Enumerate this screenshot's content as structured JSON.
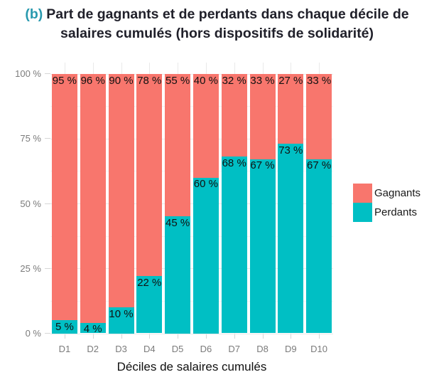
{
  "header": {
    "tag": "(b)",
    "line1": "Part de gagnants et de perdants dans chaque décile de",
    "line2": "salaires cumulés (hors dispositifs de solidarité)"
  },
  "chart_data": {
    "type": "bar",
    "stacked": true,
    "orientation": "vertical",
    "title": "(b) Part de gagnants et de perdants dans chaque décile de salaires cumulés (hors dispositifs de solidarité)",
    "xlabel": "Déciles de salaires cumulés",
    "ylabel": "",
    "categories": [
      "D1",
      "D2",
      "D3",
      "D4",
      "D5",
      "D6",
      "D7",
      "D8",
      "D9",
      "D10"
    ],
    "series": [
      {
        "name": "Gagnants",
        "color": "#F8766D",
        "values": [
          95,
          96,
          90,
          78,
          55,
          40,
          32,
          33,
          27,
          33
        ]
      },
      {
        "name": "Perdants",
        "color": "#00BFC4",
        "values": [
          5,
          4,
          10,
          22,
          45,
          60,
          68,
          67,
          73,
          67
        ]
      }
    ],
    "value_label_suffix": " %",
    "ylim": [
      0,
      100
    ],
    "yticks": [
      0,
      25,
      50,
      75,
      100
    ],
    "ytick_labels": [
      "0 %",
      "25 %",
      "50 %",
      "75 %",
      "100 %"
    ],
    "grid": "major+minor horizontal, vertical at category centers",
    "legend_position": "right",
    "colors": {
      "heading_tag": "#2899ae",
      "heading_text": "#20202a",
      "axis_text": "#7b7b7b",
      "bar_label_text": "#111111",
      "grid_major": "#e9e9e9",
      "grid_minor": "#f2f2f2",
      "tick_mark": "#d6d6d6"
    }
  }
}
